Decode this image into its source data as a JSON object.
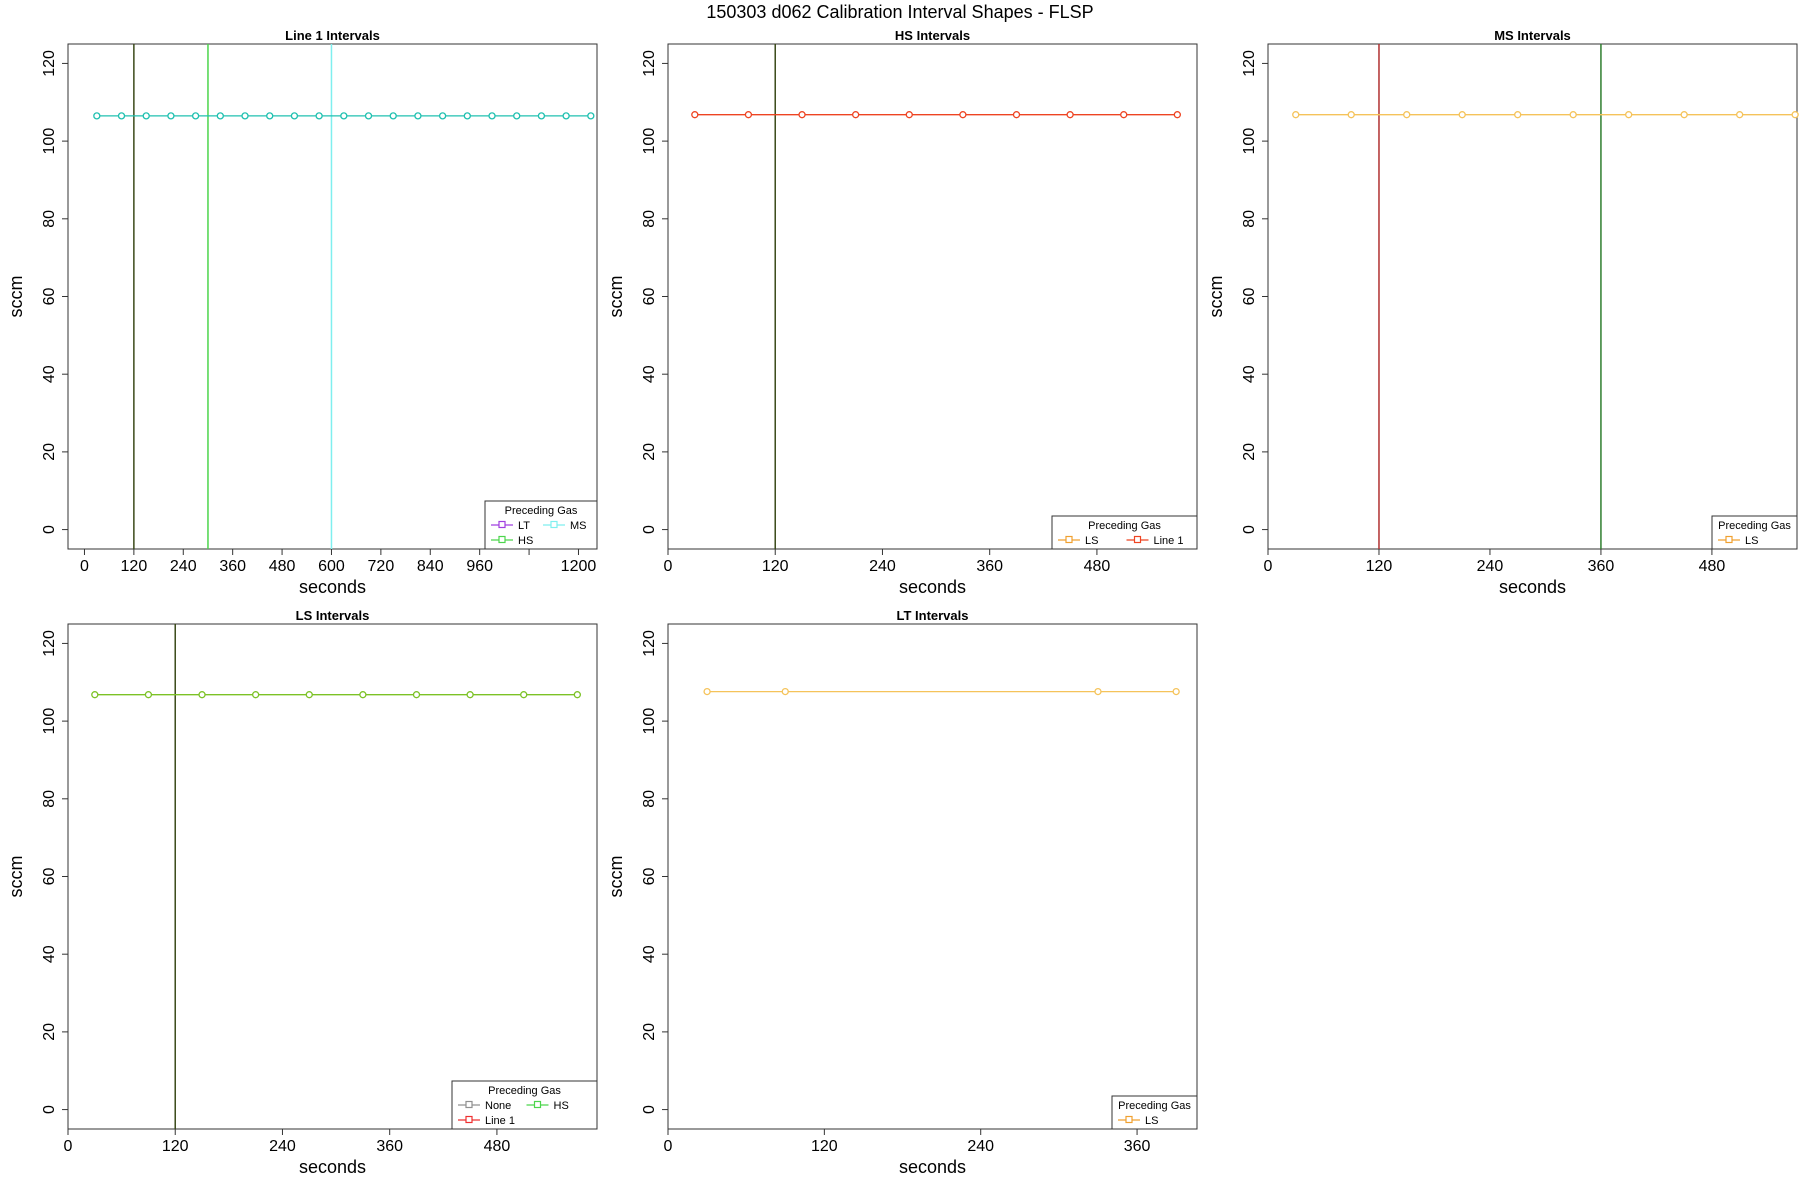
{
  "page": {
    "title": "150303   d062   Calibration Interval Shapes - FLSP"
  },
  "colors": {
    "dark_olive": "#3b4a1a",
    "bright_green": "#4cd54c",
    "cyan": "#7fefef",
    "teal_series": "#20c0b0",
    "purple": "#a040e0",
    "red_orange": "#ee4422",
    "dark_red": "#b03030",
    "dark_green": "#2f7f2f",
    "orange": "#f0a030",
    "light_orange": "#f5c35a",
    "yellow_green": "#7cc226",
    "gray": "#909090",
    "red": "#ee3030"
  },
  "chart_data": [
    {
      "type": "line",
      "title": "Line 1 Intervals",
      "xlabel": "seconds",
      "ylabel": "sccm",
      "xlim": [
        -40,
        1245
      ],
      "ylim": [
        -5,
        125
      ],
      "xticks": [
        "0",
        "120",
        "240",
        "360",
        "480",
        "600",
        "720",
        "840",
        "960",
        "",
        "1200"
      ],
      "yticks": [
        "0",
        "20",
        "40",
        "60",
        "80",
        "100",
        "120"
      ],
      "vlines": [
        {
          "x": 120,
          "color": "#3b4a1a"
        },
        {
          "x": 300,
          "color": "#4cd54c"
        },
        {
          "x": 600,
          "color": "#7fefef"
        }
      ],
      "series": [
        {
          "color": "#20c0b0",
          "x": [
            30,
            90,
            150,
            210,
            270,
            330,
            390,
            450,
            510,
            570,
            630,
            690,
            750,
            810,
            870,
            930,
            990,
            1050,
            1110,
            1170,
            1230
          ],
          "y": [
            106.5,
            106.5,
            106.5,
            106.5,
            106.5,
            106.5,
            106.5,
            106.5,
            106.5,
            106.5,
            106.5,
            106.5,
            106.5,
            106.5,
            106.5,
            106.5,
            106.5,
            106.5,
            106.5,
            106.5,
            106.5
          ]
        }
      ],
      "legend": {
        "title": "Preceding Gas",
        "position": "bottom-right",
        "columns": 2,
        "entries": [
          {
            "label": "LT",
            "color": "#a040e0"
          },
          {
            "label": "MS",
            "color": "#7fefef"
          },
          {
            "label": "HS",
            "color": "#4cd54c"
          }
        ]
      }
    },
    {
      "type": "line",
      "title": "HS Intervals",
      "xlabel": "seconds",
      "ylabel": "sccm",
      "xlim": [
        0,
        592
      ],
      "ylim": [
        -5,
        125
      ],
      "xticks": [
        "0",
        "120",
        "240",
        "360",
        "480"
      ],
      "yticks": [
        "0",
        "20",
        "40",
        "60",
        "80",
        "100",
        "120"
      ],
      "vlines": [
        {
          "x": 120,
          "color": "#3b4a1a"
        }
      ],
      "series": [
        {
          "color": "#ee4422",
          "x": [
            30,
            90,
            150,
            210,
            270,
            330,
            390,
            450,
            510,
            570
          ],
          "y": [
            106.8,
            106.8,
            106.8,
            106.8,
            106.8,
            106.8,
            106.8,
            106.8,
            106.8,
            106.8
          ]
        }
      ],
      "legend": {
        "title": "Preceding Gas",
        "position": "bottom-right",
        "columns": 2,
        "entries": [
          {
            "label": "LS",
            "color": "#f0a030"
          },
          {
            "label": "Line 1",
            "color": "#ee4422"
          }
        ]
      }
    },
    {
      "type": "line",
      "title": "MS Intervals",
      "xlabel": "seconds",
      "ylabel": "sccm",
      "xlim": [
        0,
        572
      ],
      "ylim": [
        -5,
        125
      ],
      "xticks": [
        "0",
        "120",
        "240",
        "360",
        "480"
      ],
      "yticks": [
        "0",
        "20",
        "40",
        "60",
        "80",
        "100",
        "120"
      ],
      "vlines": [
        {
          "x": 120,
          "color": "#b03030"
        },
        {
          "x": 360,
          "color": "#2f7f2f"
        }
      ],
      "series": [
        {
          "color": "#f5c35a",
          "x": [
            30,
            90,
            150,
            210,
            270,
            330,
            390,
            450,
            510,
            570
          ],
          "y": [
            106.8,
            106.8,
            106.8,
            106.8,
            106.8,
            106.8,
            106.8,
            106.8,
            106.8,
            106.8
          ]
        }
      ],
      "legend": {
        "title": "Preceding Gas",
        "position": "bottom-right",
        "columns": 1,
        "entries": [
          {
            "label": "LS",
            "color": "#f0a030"
          }
        ]
      }
    },
    {
      "type": "line",
      "title": "LS Intervals",
      "xlabel": "seconds",
      "ylabel": "sccm",
      "xlim": [
        0,
        592
      ],
      "ylim": [
        -5,
        125
      ],
      "xticks": [
        "0",
        "120",
        "240",
        "360",
        "480"
      ],
      "yticks": [
        "0",
        "20",
        "40",
        "60",
        "80",
        "100",
        "120"
      ],
      "vlines": [
        {
          "x": 120,
          "color": "#3b4a1a"
        }
      ],
      "series": [
        {
          "color": "#7cc226",
          "x": [
            30,
            90,
            150,
            210,
            270,
            330,
            390,
            450,
            510,
            570
          ],
          "y": [
            106.8,
            106.8,
            106.8,
            106.8,
            106.8,
            106.8,
            106.8,
            106.8,
            106.8,
            106.8
          ]
        }
      ],
      "legend": {
        "title": "Preceding Gas",
        "position": "bottom-right",
        "columns": 2,
        "entries": [
          {
            "label": "None",
            "color": "#909090"
          },
          {
            "label": "HS",
            "color": "#4cd54c"
          },
          {
            "label": "Line 1",
            "color": "#ee3030"
          }
        ]
      }
    },
    {
      "type": "line",
      "title": "LT Intervals",
      "xlabel": "seconds",
      "ylabel": "sccm",
      "xlim": [
        0,
        406
      ],
      "ylim": [
        -5,
        125
      ],
      "xticks": [
        "0",
        "120",
        "240",
        "360"
      ],
      "yticks": [
        "0",
        "20",
        "40",
        "60",
        "80",
        "100",
        "120"
      ],
      "vlines": [],
      "series": [
        {
          "color": "#f5c35a",
          "x": [
            30,
            90,
            330,
            390
          ],
          "y": [
            107.6,
            107.6,
            107.6,
            107.6
          ]
        }
      ],
      "legend": {
        "title": "Preceding Gas",
        "position": "bottom-right",
        "columns": 1,
        "entries": [
          {
            "label": "LS",
            "color": "#f0a030"
          }
        ]
      }
    }
  ]
}
